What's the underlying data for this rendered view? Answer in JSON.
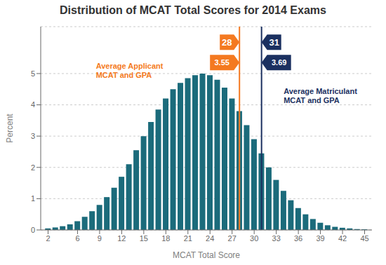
{
  "chart_data": {
    "type": "bar",
    "title": "Distribution of MCAT Total Scores for 2014 Exams",
    "xlabel": "MCAT Total Score",
    "ylabel": "Percent",
    "x": [
      2,
      3,
      4,
      5,
      6,
      7,
      8,
      9,
      10,
      11,
      12,
      13,
      14,
      15,
      16,
      17,
      18,
      19,
      20,
      21,
      22,
      23,
      24,
      25,
      26,
      27,
      28,
      29,
      30,
      31,
      32,
      33,
      34,
      35,
      36,
      37,
      38,
      39,
      40,
      41,
      42,
      43,
      44,
      45
    ],
    "values": [
      0.05,
      0.08,
      0.12,
      0.18,
      0.28,
      0.42,
      0.6,
      0.8,
      1.05,
      1.35,
      1.7,
      2.1,
      2.55,
      3.0,
      3.45,
      3.85,
      4.2,
      4.5,
      4.7,
      4.85,
      4.95,
      5.0,
      4.95,
      4.8,
      4.55,
      4.2,
      3.8,
      3.35,
      2.9,
      2.45,
      2.0,
      1.6,
      1.25,
      0.95,
      0.7,
      0.5,
      0.35,
      0.23,
      0.15,
      0.1,
      0.07,
      0.05,
      0.03,
      0.02
    ],
    "color": "#1B6B7B",
    "xlim": [
      1,
      46
    ],
    "xticks": [
      2,
      6,
      9,
      12,
      15,
      18,
      21,
      24,
      27,
      30,
      33,
      36,
      39,
      42,
      45
    ],
    "ylim": [
      0,
      6.5
    ],
    "yticks": [
      0,
      1,
      2,
      3,
      4,
      5
    ],
    "grid": true,
    "reference_lines": [
      {
        "x": 28,
        "color": "#F47920",
        "flag_labels": [
          "28",
          "3.55"
        ],
        "text": "Average Applicant\nMCAT and GPA"
      },
      {
        "x": 31,
        "color": "#1B3060",
        "flag_labels": [
          "31",
          "3.69"
        ],
        "text": "Average Matriculant\nMCAT and GPA"
      }
    ]
  }
}
